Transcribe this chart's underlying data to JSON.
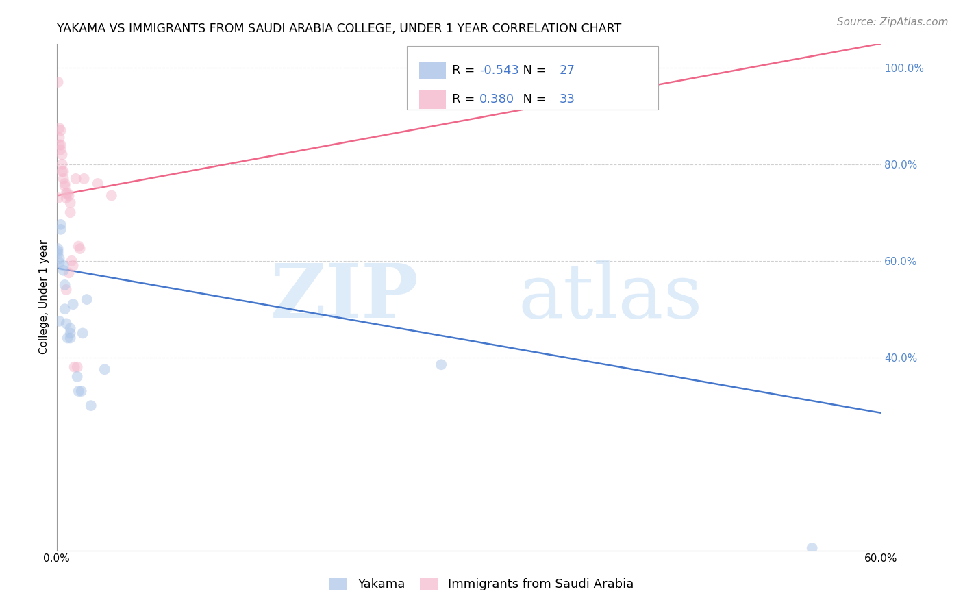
{
  "title": "YAKAMA VS IMMIGRANTS FROM SAUDI ARABIA COLLEGE, UNDER 1 YEAR CORRELATION CHART",
  "source": "Source: ZipAtlas.com",
  "ylabel": "College, Under 1 year",
  "watermark_zip": "ZIP",
  "watermark_atlas": "atlas",
  "legend_labels": [
    "Yakama",
    "Immigrants from Saudi Arabia"
  ],
  "legend_r_vals": [
    "-0.543",
    "0.380"
  ],
  "legend_n_vals": [
    "27",
    "33"
  ],
  "xlim": [
    0.0,
    0.6
  ],
  "ylim": [
    0.0,
    1.05
  ],
  "ytick_positions": [
    0.4,
    0.6,
    0.8,
    1.0
  ],
  "ytick_labels": [
    "40.0%",
    "60.0%",
    "80.0%",
    "100.0%"
  ],
  "grid_color": "#d0d0d0",
  "background_color": "#ffffff",
  "blue_color": "#aac4e8",
  "pink_color": "#f5b8cc",
  "blue_line_color": "#4477cc",
  "pink_line_color": "#ee6688",
  "blue_line_x0": 0.0,
  "blue_line_y0": 0.585,
  "blue_line_x1": 0.6,
  "blue_line_y1": 0.285,
  "pink_line_x0": 0.0,
  "pink_line_y0": 0.735,
  "pink_line_x1": 0.6,
  "pink_line_y1": 1.05,
  "marker_size": 130,
  "marker_alpha": 0.5,
  "line_width": 1.8,
  "title_fontsize": 12.5,
  "axis_fontsize": 11,
  "legend_fontsize": 13,
  "source_fontsize": 11,
  "blue_x": [
    0.001,
    0.001,
    0.002,
    0.002,
    0.003,
    0.003,
    0.005,
    0.005,
    0.006,
    0.006,
    0.007,
    0.008,
    0.01,
    0.01,
    0.01,
    0.012,
    0.015,
    0.016,
    0.018,
    0.019,
    0.022,
    0.025,
    0.035,
    0.55,
    0.28,
    0.001,
    0.002
  ],
  "blue_y": [
    0.62,
    0.625,
    0.605,
    0.475,
    0.675,
    0.665,
    0.59,
    0.58,
    0.55,
    0.5,
    0.47,
    0.44,
    0.46,
    0.45,
    0.44,
    0.51,
    0.36,
    0.33,
    0.33,
    0.45,
    0.52,
    0.3,
    0.375,
    0.005,
    0.385,
    0.615,
    0.596
  ],
  "pink_x": [
    0.001,
    0.001,
    0.002,
    0.002,
    0.002,
    0.003,
    0.003,
    0.003,
    0.004,
    0.004,
    0.004,
    0.005,
    0.005,
    0.006,
    0.006,
    0.007,
    0.007,
    0.007,
    0.008,
    0.009,
    0.009,
    0.01,
    0.01,
    0.011,
    0.012,
    0.013,
    0.014,
    0.015,
    0.016,
    0.017,
    0.02,
    0.03,
    0.04
  ],
  "pink_y": [
    0.97,
    0.73,
    0.875,
    0.855,
    0.84,
    0.87,
    0.84,
    0.83,
    0.82,
    0.8,
    0.785,
    0.785,
    0.77,
    0.76,
    0.755,
    0.74,
    0.73,
    0.54,
    0.74,
    0.735,
    0.575,
    0.72,
    0.7,
    0.6,
    0.59,
    0.38,
    0.77,
    0.38,
    0.63,
    0.625,
    0.77,
    0.76,
    0.735
  ]
}
